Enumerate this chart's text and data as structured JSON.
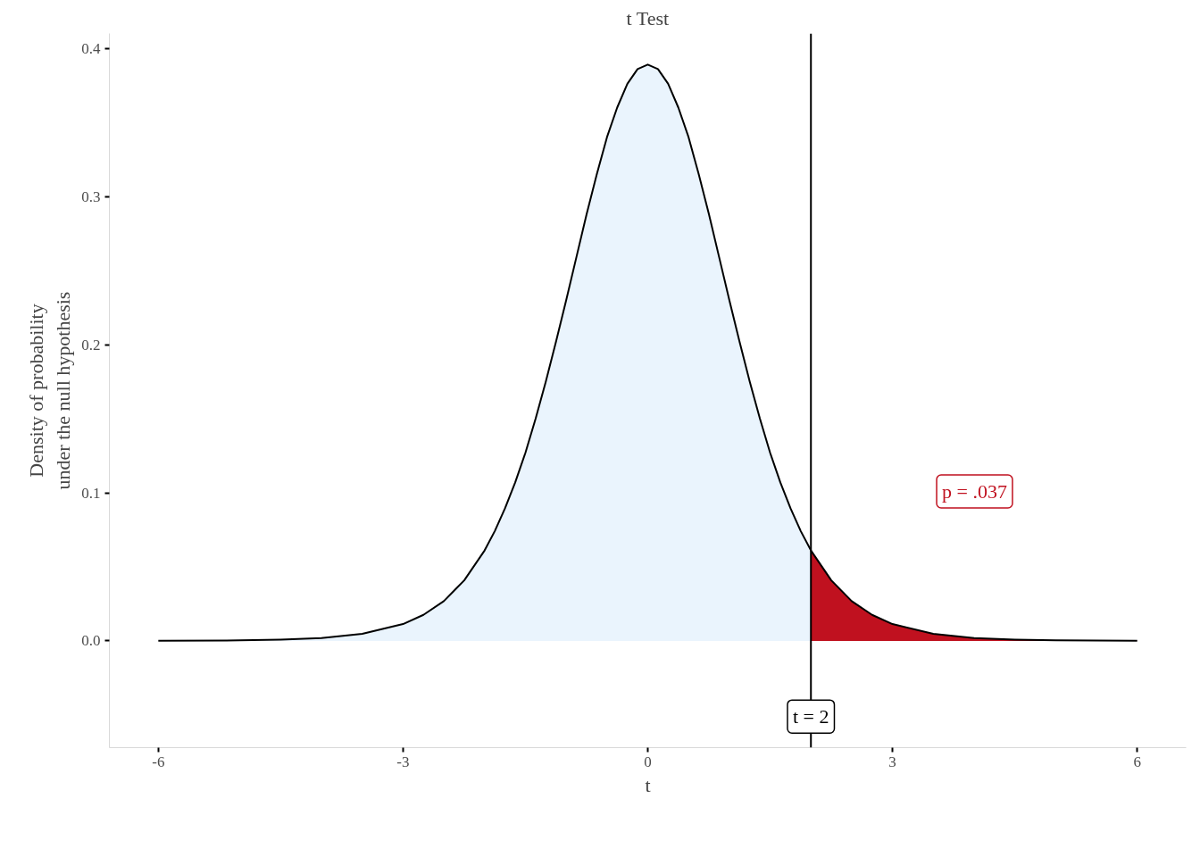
{
  "chart_data": {
    "type": "line",
    "title": "t Test",
    "xlabel": "t",
    "ylabel": "Density of probability\nunder the null hypothesis",
    "xlim": [
      -6.6,
      6.6
    ],
    "ylim": [
      -0.072,
      0.41
    ],
    "xticks": [
      -6,
      -3,
      0,
      3,
      6
    ],
    "yticks": [
      {
        "value": 0,
        "label": "0.0"
      },
      {
        "value": 0.1,
        "label": "0.1"
      },
      {
        "value": 0.2,
        "label": "0.2"
      },
      {
        "value": 0.3,
        "label": "0.3"
      },
      {
        "value": 0.4,
        "label": "0.4"
      }
    ],
    "grid": false,
    "marker": "none",
    "line_style": "solid",
    "series": [
      {
        "type": "area",
        "color": "#eaf4fd",
        "x": [
          -6,
          -5,
          -4.5,
          -4,
          -3.5,
          -3,
          -2.75,
          -2.5,
          -2.25,
          -2,
          -1.875,
          -1.75,
          -1.625,
          -1.5,
          -1.375,
          -1.25,
          -1.125,
          -1,
          -0.875,
          -0.75,
          -0.625,
          -0.5,
          -0.375,
          -0.25,
          -0.125,
          0,
          0.125,
          0.25,
          0.375,
          0.5,
          0.625,
          0.75,
          0.875,
          1,
          1.125,
          1.25,
          1.375,
          1.5,
          1.625,
          1.75,
          1.875,
          2
        ],
        "values": [
          0.0001,
          0.0004,
          0.0009,
          0.002,
          0.0048,
          0.0114,
          0.0176,
          0.0269,
          0.0409,
          0.0611,
          0.0742,
          0.0895,
          0.107,
          0.127,
          0.15,
          0.175,
          0.202,
          0.23,
          0.259,
          0.288,
          0.315,
          0.34,
          0.36,
          0.376,
          0.386,
          0.389,
          0.386,
          0.376,
          0.36,
          0.34,
          0.315,
          0.288,
          0.259,
          0.23,
          0.202,
          0.175,
          0.15,
          0.127,
          0.107,
          0.0895,
          0.0742,
          0.0611
        ]
      },
      {
        "type": "area",
        "color": "#c0111f",
        "x": [
          2,
          2.25,
          2.5,
          2.75,
          3,
          3.5,
          4,
          4.5,
          5,
          6
        ],
        "values": [
          0.0611,
          0.0409,
          0.0269,
          0.0176,
          0.0114,
          0.0048,
          0.002,
          0.0009,
          0.0004,
          0.0001
        ]
      },
      {
        "color": "#000000",
        "x": [
          -6,
          -5,
          -4.5,
          -4,
          -3.5,
          -3,
          -2.75,
          -2.5,
          -2.25,
          -2,
          -1.875,
          -1.75,
          -1.625,
          -1.5,
          -1.375,
          -1.25,
          -1.125,
          -1,
          -0.875,
          -0.75,
          -0.625,
          -0.5,
          -0.375,
          -0.25,
          -0.125,
          0,
          0.125,
          0.25,
          0.375,
          0.5,
          0.625,
          0.75,
          0.875,
          1,
          1.125,
          1.25,
          1.375,
          1.5,
          1.625,
          1.75,
          1.875,
          2,
          2.25,
          2.5,
          2.75,
          3,
          3.5,
          4,
          4.5,
          5,
          6
        ],
        "values": [
          0.0001,
          0.0004,
          0.0009,
          0.002,
          0.0048,
          0.0114,
          0.0176,
          0.0269,
          0.0409,
          0.0611,
          0.0742,
          0.0895,
          0.107,
          0.127,
          0.15,
          0.175,
          0.202,
          0.23,
          0.259,
          0.288,
          0.315,
          0.34,
          0.36,
          0.376,
          0.386,
          0.389,
          0.386,
          0.376,
          0.36,
          0.34,
          0.315,
          0.288,
          0.259,
          0.23,
          0.202,
          0.175,
          0.15,
          0.127,
          0.107,
          0.0895,
          0.0742,
          0.0611,
          0.0409,
          0.0269,
          0.0176,
          0.0114,
          0.0048,
          0.002,
          0.0009,
          0.0004,
          0.0001
        ]
      }
    ],
    "ref_lines": [
      {
        "axis": "x",
        "value": 2,
        "label": null,
        "color": "#000000",
        "line_style": "solid"
      }
    ],
    "annotations": [
      {
        "text": "t = 2",
        "x": 2,
        "y": -0.051
      },
      "p = .037"
    ]
  }
}
